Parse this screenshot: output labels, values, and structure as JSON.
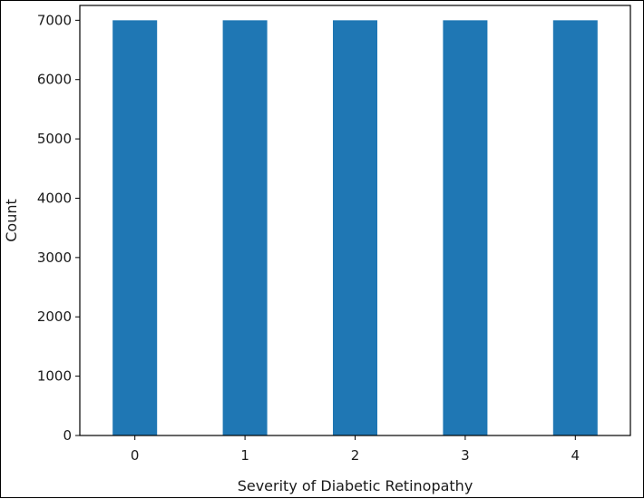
{
  "chart_data": {
    "type": "bar",
    "title": "",
    "xlabel": "Severity of Diabetic Retinopathy",
    "ylabel": "Count",
    "categories": [
      "0",
      "1",
      "2",
      "3",
      "4"
    ],
    "values": [
      7000,
      7000,
      7000,
      7000,
      7000
    ],
    "ylim": [
      0,
      7250
    ],
    "yticks": [
      0,
      1000,
      2000,
      3000,
      4000,
      5000,
      6000,
      7000
    ],
    "grid": false,
    "legend": "none",
    "bar_color": "#1f77b4"
  }
}
